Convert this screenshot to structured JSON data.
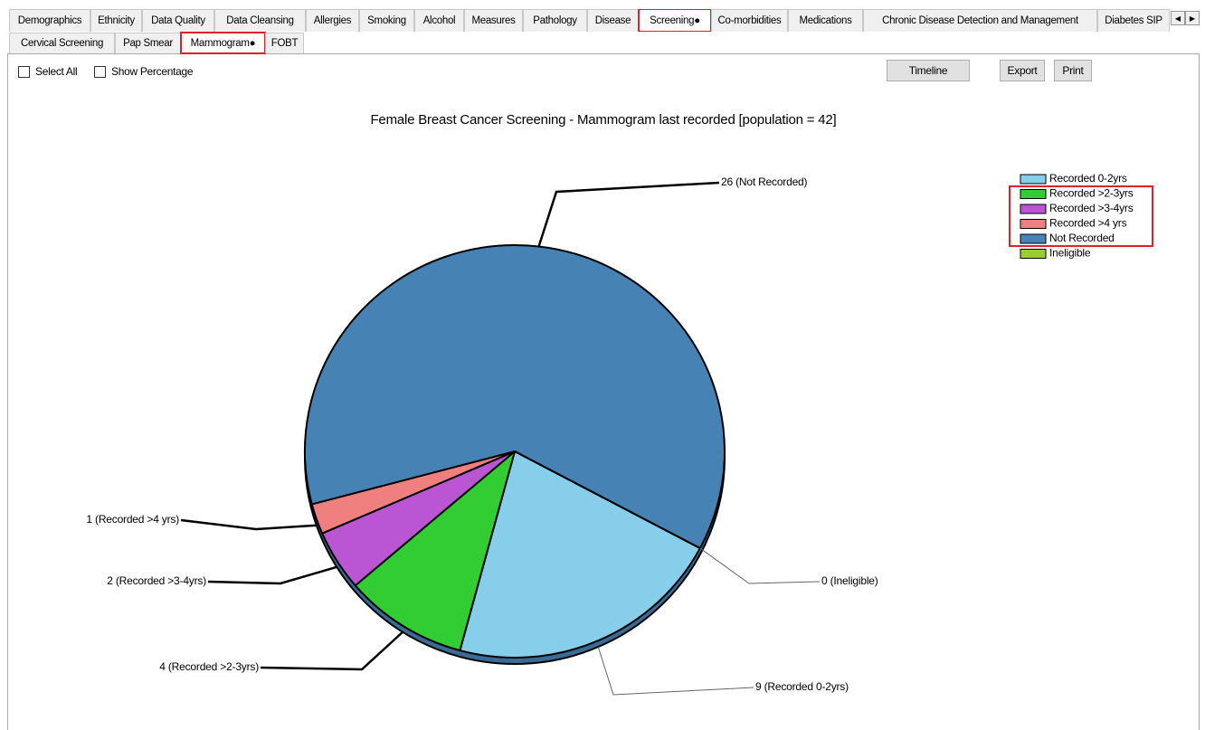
{
  "tabs": [
    "Demographics",
    "Ethnicity",
    "Data Quality",
    "Data Cleansing",
    "Allergies",
    "Smoking",
    "Alcohol",
    "Measures",
    "Pathology",
    "Disease",
    "Screening●",
    "Co-morbidities",
    "Medications",
    "Chronic Disease Detection and Management",
    "Diabetes SIP"
  ],
  "subtabs": [
    "Cervical Screening",
    "Pap Smear",
    "Mammogram●",
    "FOBT"
  ],
  "controls": {
    "select_all": "Select All",
    "show_percentage": "Show Percentage"
  },
  "buttons": {
    "timeline": "Timeline",
    "export": "Export",
    "print": "Print"
  },
  "chart_data": {
    "type": "pie",
    "title": "Female Breast Cancer Screening - Mammogram last recorded [population = 42]",
    "categories": [
      "Recorded 0-2yrs",
      "Recorded >2-3yrs",
      "Recorded >3-4yrs",
      "Recorded >4 yrs",
      "Not Recorded",
      "Ineligible"
    ],
    "values": [
      9,
      4,
      2,
      1,
      26,
      0
    ],
    "value_labels": [
      "9 (Recorded 0-2yrs)",
      "4 (Recorded >2-3yrs)",
      "2 (Recorded >3-4yrs)",
      "1 (Recorded >4 yrs)",
      "26 (Not Recorded)",
      "0 (Ineligible)"
    ],
    "colors": [
      "#87ceeb",
      "#32cd32",
      "#ba55d3",
      "#f08080",
      "#4682b4",
      "#9acd32"
    ],
    "legend": "top-right"
  }
}
